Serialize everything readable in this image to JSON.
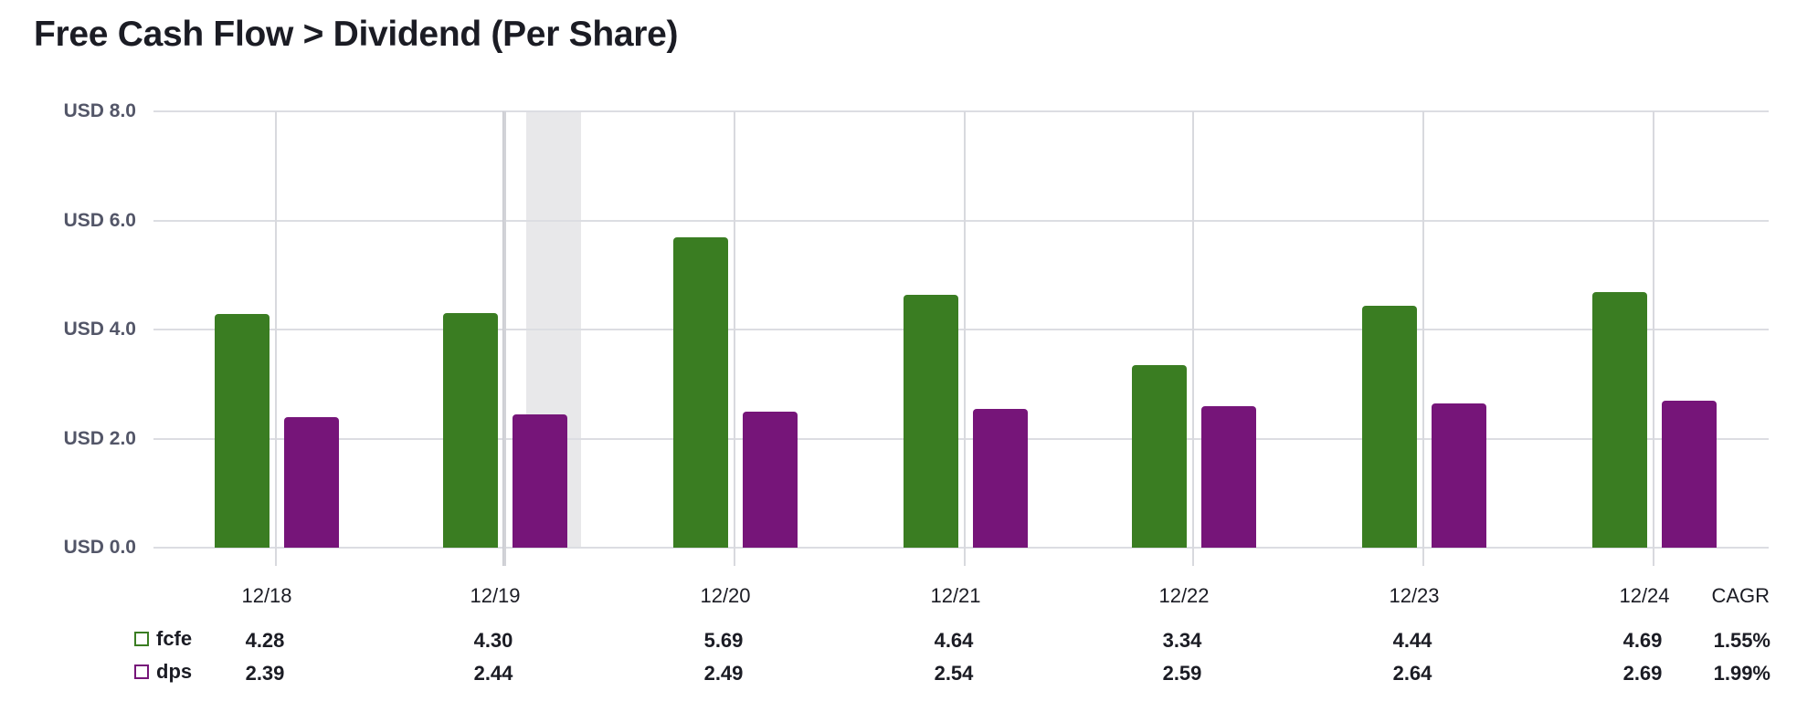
{
  "title": "Free Cash Flow > Dividend (Per Share)",
  "colors": {
    "fcfe": "#3a7d22",
    "dps": "#761579",
    "grid": "#dcdde2",
    "highlight_band": "#e8e8ea",
    "axis_text": "#535668",
    "text": "#1b1c24"
  },
  "y_axis": {
    "ticks": [
      "USD 0.0",
      "USD 2.0",
      "USD 4.0",
      "USD 6.0",
      "USD 8.0"
    ]
  },
  "x_axis": {
    "labels": [
      "12/18",
      "12/19",
      "12/20",
      "12/21",
      "12/22",
      "12/23",
      "12/24"
    ]
  },
  "table": {
    "cagr_header": "CAGR",
    "rows": [
      {
        "key": "fcfe",
        "label": "fcfe",
        "values": [
          "4.28",
          "4.30",
          "5.69",
          "4.64",
          "3.34",
          "4.44",
          "4.69"
        ],
        "cagr": "1.55%"
      },
      {
        "key": "dps",
        "label": "dps",
        "values": [
          "2.39",
          "2.44",
          "2.49",
          "2.54",
          "2.59",
          "2.64",
          "2.69"
        ],
        "cagr": "1.99%"
      }
    ]
  },
  "chart_data": {
    "type": "bar",
    "title": "Free Cash Flow > Dividend (Per Share)",
    "xlabel": "",
    "ylabel": "USD",
    "categories": [
      "12/18",
      "12/19",
      "12/20",
      "12/21",
      "12/22",
      "12/23",
      "12/24"
    ],
    "series": [
      {
        "name": "fcfe",
        "color": "#3a7d22",
        "values": [
          4.28,
          4.3,
          5.69,
          4.64,
          3.34,
          4.44,
          4.69
        ],
        "cagr": "1.55%"
      },
      {
        "name": "dps",
        "color": "#761579",
        "values": [
          2.39,
          2.44,
          2.49,
          2.54,
          2.59,
          2.64,
          2.69
        ],
        "cagr": "1.99%"
      }
    ],
    "ylim": [
      0,
      8
    ],
    "y_ticks": [
      0,
      2,
      4,
      6,
      8
    ],
    "y_tick_labels": [
      "USD 0.0",
      "USD 2.0",
      "USD 4.0",
      "USD 6.0",
      "USD 8.0"
    ],
    "grid": true,
    "legend_position": "bottom-left (data table)",
    "highlight": {
      "category": "12/19",
      "note": "grey shaded band right of 12/19 tick"
    }
  }
}
